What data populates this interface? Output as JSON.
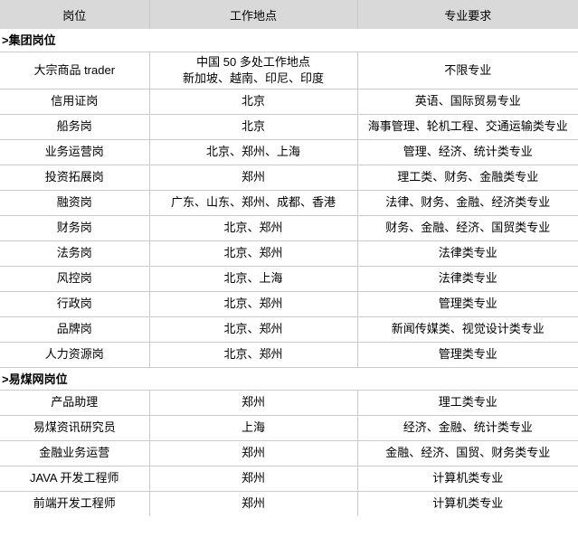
{
  "colors": {
    "header_bg": "#d9d9d9",
    "border": "#cbcbcb",
    "text": "#000000"
  },
  "table": {
    "columns": [
      {
        "label": "岗位"
      },
      {
        "label": "工作地点"
      },
      {
        "label": "专业要求"
      }
    ],
    "sections": [
      {
        "title": ">集团岗位",
        "rows": [
          {
            "position": "大宗商品 trader",
            "location": "中国 50 多处工作地点\n新加坡、越南、印尼、印度",
            "requirement": "不限专业"
          },
          {
            "position": "信用证岗",
            "location": "北京",
            "requirement": "英语、国际贸易专业"
          },
          {
            "position": "船务岗",
            "location": "北京",
            "requirement": "海事管理、轮机工程、交通运输类专业"
          },
          {
            "position": "业务运营岗",
            "location": "北京、郑州、上海",
            "requirement": "管理、经济、统计类专业"
          },
          {
            "position": "投资拓展岗",
            "location": "郑州",
            "requirement": "理工类、财务、金融类专业"
          },
          {
            "position": "融资岗",
            "location": "广东、山东、郑州、成都、香港",
            "requirement": "法律、财务、金融、经济类专业"
          },
          {
            "position": "财务岗",
            "location": "北京、郑州",
            "requirement": "财务、金融、经济、国贸类专业"
          },
          {
            "position": "法务岗",
            "location": "北京、郑州",
            "requirement": "法律类专业"
          },
          {
            "position": "风控岗",
            "location": "北京、上海",
            "requirement": "法律类专业"
          },
          {
            "position": "行政岗",
            "location": "北京、郑州",
            "requirement": "管理类专业"
          },
          {
            "position": "品牌岗",
            "location": "北京、郑州",
            "requirement": "新闻传媒类、视觉设计类专业"
          },
          {
            "position": "人力资源岗",
            "location": "北京、郑州",
            "requirement": "管理类专业"
          }
        ]
      },
      {
        "title": ">易煤网岗位",
        "rows": [
          {
            "position": "产品助理",
            "location": "郑州",
            "requirement": "理工类专业"
          },
          {
            "position": "易煤资讯研究员",
            "location": "上海",
            "requirement": "经济、金融、统计类专业"
          },
          {
            "position": "金融业务运营",
            "location": "郑州",
            "requirement": "金融、经济、国贸、财务类专业"
          },
          {
            "position": "JAVA 开发工程师",
            "location": "郑州",
            "requirement": "计算机类专业"
          },
          {
            "position": "前端开发工程师",
            "location": "郑州",
            "requirement": "计算机类专业"
          }
        ]
      }
    ]
  }
}
